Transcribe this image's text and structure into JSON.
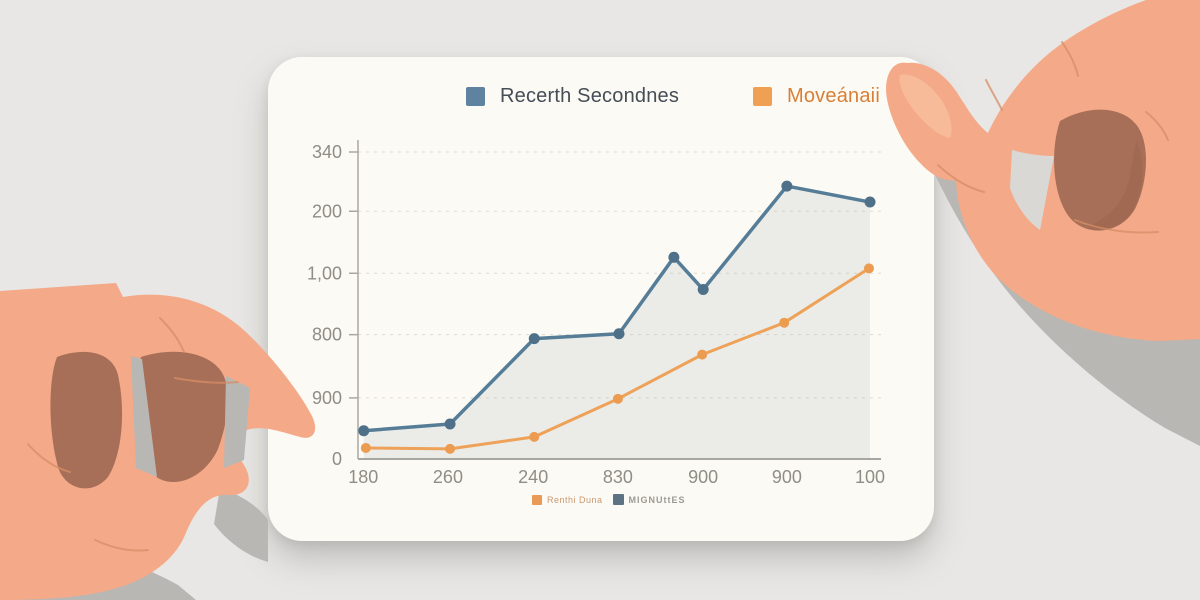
{
  "legend": {
    "series1_label": "Recerth Secondnes",
    "series2_label": "Moveánaii"
  },
  "mini_legend": {
    "item1_label": "Renthi Duna",
    "item2_label": "MIGNUttES"
  },
  "colors": {
    "series1": "#567d97",
    "series1_marker": "#4e7089",
    "series1_area": "rgba(149,165,166,0.16)",
    "series2": "#eea158",
    "series2_marker": "#ec9c50",
    "grid": "#dcdbd0",
    "axis": "#a9a8a0",
    "tick_text": "#8f8e86",
    "legend_blue_text": "#454d57",
    "legend_orange_text": "#d97f35",
    "card_bg": "#fcfaf4",
    "page_bg": "#e8e7e5"
  },
  "chart_data": {
    "type": "line",
    "title": "",
    "xlabel": "",
    "ylabel": "",
    "grid": "horizontal-dashed",
    "legend_position": "top",
    "y_ticks": [
      {
        "label": "340",
        "f": 1.0
      },
      {
        "label": "200",
        "f": 0.807
      },
      {
        "label": "1,00",
        "f": 0.605
      },
      {
        "label": "800",
        "f": 0.405
      },
      {
        "label": "900",
        "f": 0.199
      },
      {
        "label": "0",
        "f": 0.0
      }
    ],
    "x_ticks": [
      {
        "label": "180",
        "f": 0.01
      },
      {
        "label": "260",
        "f": 0.172
      },
      {
        "label": "240",
        "f": 0.335
      },
      {
        "label": "830",
        "f": 0.497
      },
      {
        "label": "900",
        "f": 0.66
      },
      {
        "label": "900",
        "f": 0.82
      },
      {
        "label": "100",
        "f": 0.979
      }
    ],
    "series": [
      {
        "name": "Recerth Secondnes",
        "color": "#567d97",
        "marker_color": "#4e7089",
        "fill_area": true,
        "line_width": 3.5,
        "marker_radius": 5.5,
        "points": [
          [
            0.011,
            0.092
          ],
          [
            0.176,
            0.114
          ],
          [
            0.337,
            0.392
          ],
          [
            0.499,
            0.408
          ],
          [
            0.604,
            0.657
          ],
          [
            0.66,
            0.552
          ],
          [
            0.82,
            0.889
          ],
          [
            0.979,
            0.837
          ]
        ],
        "approx_values": [
          31,
          39,
          133,
          139,
          223,
          188,
          302,
          285
        ]
      },
      {
        "name": "Moveánaii",
        "color": "#eea158",
        "marker_color": "#ec9c50",
        "fill_area": false,
        "line_width": 3,
        "marker_radius": 5,
        "points": [
          [
            0.015,
            0.036
          ],
          [
            0.176,
            0.033
          ],
          [
            0.337,
            0.072
          ],
          [
            0.497,
            0.196
          ],
          [
            0.658,
            0.34
          ],
          [
            0.815,
            0.444
          ],
          [
            0.977,
            0.621
          ]
        ],
        "approx_values": [
          12,
          11,
          25,
          67,
          116,
          151,
          211
        ]
      }
    ]
  }
}
